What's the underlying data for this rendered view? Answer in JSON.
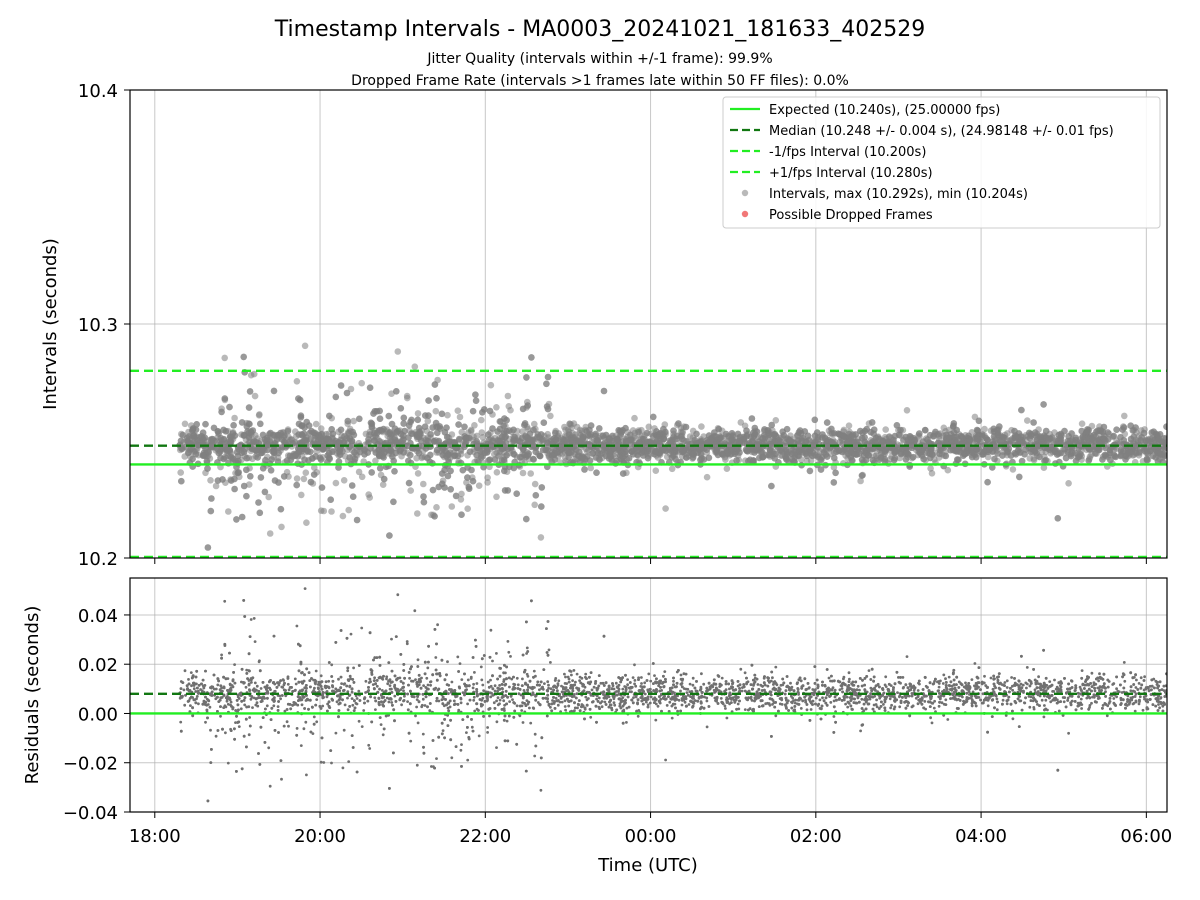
{
  "chart_data": {
    "type": "scatter",
    "title": "Timestamp Intervals - MA0003_20241021_181633_402529",
    "subtitle_lines": [
      "Jitter Quality (intervals within +/-1 frame): 99.9%",
      "Dropped Frame Rate (intervals >1 frames late within 50 FF files): 0.0%"
    ],
    "xlabel": "Time (UTC)",
    "x_ticks": [
      "18:00",
      "20:00",
      "22:00",
      "00:00",
      "02:00",
      "04:00",
      "06:00"
    ],
    "x_range_hours": [
      17.7,
      30.25
    ],
    "x_data_range_hours": [
      18.3,
      30.25
    ],
    "top": {
      "ylabel": "Intervals (seconds)",
      "ylim": [
        10.2,
        10.4
      ],
      "y_ticks": [
        "10.2",
        "10.3",
        "10.4"
      ],
      "expected": 10.24,
      "median": 10.248,
      "lower_interval": 10.2,
      "upper_interval": 10.28,
      "max_interval": 10.292,
      "min_interval": 10.204
    },
    "bottom": {
      "ylabel": "Residuals (seconds)",
      "ylim": [
        -0.04,
        0.055
      ],
      "y_ticks": [
        "−0.04",
        "−0.02",
        "0.00",
        "0.02",
        "0.04"
      ],
      "expected": 0.0,
      "median": 0.008
    },
    "legend": {
      "position": "top-right",
      "entries": [
        {
          "label": "Expected (10.240s), (25.00000 fps)",
          "style": "solid",
          "color": "#22ee22"
        },
        {
          "label": "Median (10.248 +/- 0.004 s), (24.98148 +/- 0.01 fps)",
          "style": "dashed",
          "color": "#117711"
        },
        {
          "label": "-1/fps Interval (10.200s)",
          "style": "dashed",
          "color": "#22ee22"
        },
        {
          "label": "+1/fps Interval (10.280s)",
          "style": "dashed",
          "color": "#22ee22"
        },
        {
          "label": "Intervals, max (10.292s), min (10.204s)",
          "style": "marker",
          "color": "#808080"
        },
        {
          "label": "Possible Dropped Frames",
          "style": "marker",
          "color": "#ee5555"
        }
      ]
    },
    "series": [
      {
        "name": "Intervals",
        "color": "#808080",
        "count_per_hour": 400,
        "noisy_segment_hours": [
          18.6,
          22.8
        ],
        "noisy_spread": 0.025,
        "quiet_spread": 0.007,
        "outlier_rate": 0.02
      },
      {
        "name": "Possible Dropped Frames",
        "color": "#ee5555",
        "count": 0
      }
    ],
    "colors": {
      "expected": "#22ee22",
      "median": "#117711",
      "points": "#808080"
    },
    "grid": true
  }
}
